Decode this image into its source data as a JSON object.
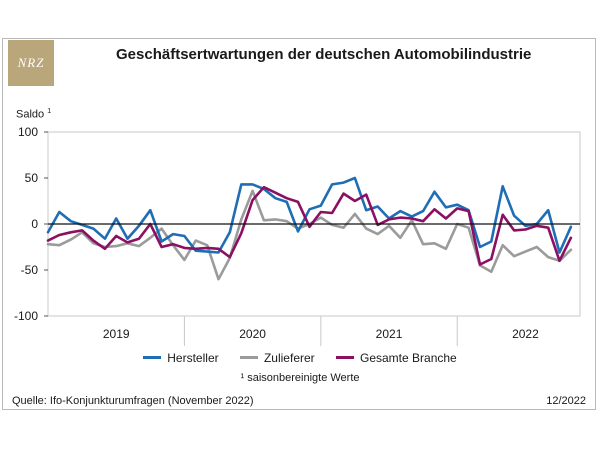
{
  "logo_text": "NRZ",
  "chart_data": {
    "type": "line",
    "title": "Geschäftsertwartungen der deutschen Automobilindustrie",
    "ylabel": "Saldo",
    "ylabel_footnote": "1",
    "ylim": [
      -100,
      100
    ],
    "yticks": [
      100,
      50,
      0,
      -50,
      -100
    ],
    "xlim": [
      2019.0,
      2022.9
    ],
    "year_labels": [
      {
        "year": "2019",
        "x": 2019.5
      },
      {
        "year": "2020",
        "x": 2020.5
      },
      {
        "year": "2021",
        "x": 2021.5
      },
      {
        "year": "2022",
        "x": 2022.5
      }
    ],
    "year_boundaries": [
      2020.0,
      2021.0,
      2022.0
    ],
    "zero_line": true,
    "x": [
      2019.0,
      2019.083,
      2019.167,
      2019.25,
      2019.333,
      2019.417,
      2019.5,
      2019.583,
      2019.667,
      2019.75,
      2019.833,
      2019.917,
      2020.0,
      2020.083,
      2020.167,
      2020.25,
      2020.333,
      2020.417,
      2020.5,
      2020.583,
      2020.667,
      2020.75,
      2020.833,
      2020.917,
      2021.0,
      2021.083,
      2021.167,
      2021.25,
      2021.333,
      2021.417,
      2021.5,
      2021.583,
      2021.667,
      2021.75,
      2021.833,
      2021.917,
      2022.0,
      2022.083,
      2022.167,
      2022.25,
      2022.333,
      2022.417,
      2022.5,
      2022.583,
      2022.667,
      2022.75,
      2022.833
    ],
    "series": [
      {
        "name": "Hersteller",
        "color": "#1f6eb5",
        "values": [
          -9,
          13,
          3,
          -1,
          -5,
          -16,
          6,
          -16,
          -2,
          15,
          -19,
          -11,
          -13,
          -29,
          -30,
          -31,
          -9,
          43,
          43,
          38,
          28,
          24,
          -8,
          16,
          20,
          43,
          45,
          50,
          15,
          19,
          6,
          14,
          8,
          14,
          35,
          18,
          21,
          15,
          -25,
          -19,
          41,
          9,
          -2,
          0,
          15,
          -31,
          -3
        ]
      },
      {
        "name": "Zulieferer",
        "color": "#9b9b9b",
        "values": [
          -22,
          -23,
          -17,
          -9,
          -21,
          -25,
          -24,
          -21,
          -24,
          -15,
          -5,
          -23,
          -39,
          -18,
          -23,
          -60,
          -37,
          5,
          36,
          4,
          5,
          3,
          -5,
          0,
          7,
          -1,
          -4,
          11,
          -5,
          -11,
          -2,
          -15,
          4,
          -22,
          -21,
          -27,
          0,
          -4,
          -45,
          -52,
          -23,
          -35,
          -30,
          -25,
          -36,
          -40,
          -28
        ]
      },
      {
        "name": "Gesamte Branche",
        "color": "#8b1061",
        "values": [
          -18,
          -12,
          -9,
          -7,
          -18,
          -27,
          -13,
          -20,
          -16,
          0,
          -25,
          -22,
          -26,
          -27,
          -26,
          -27,
          -36,
          -10,
          26,
          40,
          34,
          28,
          24,
          -3,
          13,
          12,
          33,
          25,
          32,
          -1,
          5,
          7,
          6,
          3,
          16,
          6,
          17,
          14,
          -44,
          -38,
          10,
          -7,
          -6,
          -2,
          -4,
          -40,
          -15
        ]
      }
    ]
  },
  "legend": {
    "items": [
      {
        "label": "Hersteller",
        "color": "#1f6eb5"
      },
      {
        "label": "Zulieferer",
        "color": "#9b9b9b"
      },
      {
        "label": "Gesamte Branche",
        "color": "#8b1061"
      }
    ]
  },
  "footnote": "¹ saisonbereinigte Werte",
  "source": "Quelle: Ifo-Konjunkturumfragen (November 2022)",
  "date": "12/2022"
}
